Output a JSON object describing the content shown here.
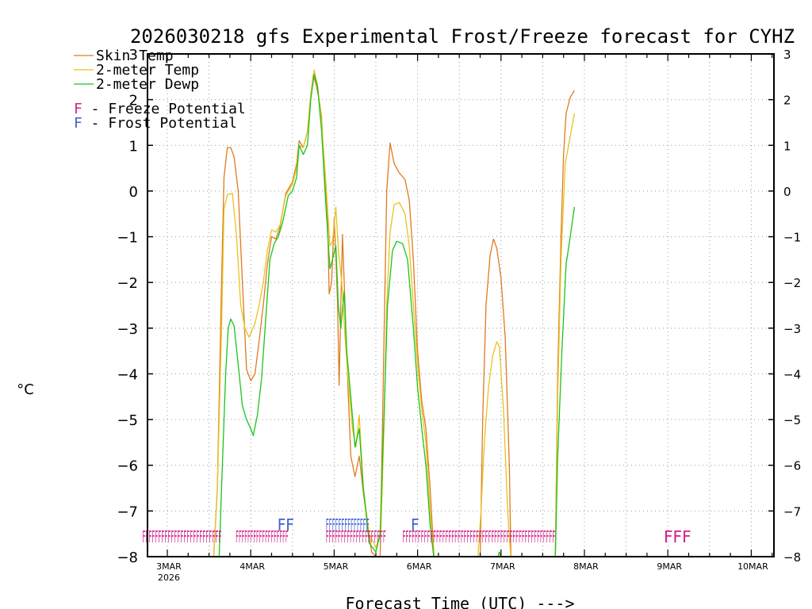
{
  "chart_data": {
    "type": "line",
    "title": "2026030218 gfs Experimental Frost/Freeze forecast for CYHZ",
    "ylabel": "°C",
    "xlabel": "Forecast Time (UTC) --->",
    "ylim": [
      -8,
      3
    ],
    "xlim": [
      -0.25,
      7.25
    ],
    "yticks": [
      -8,
      -7,
      -6,
      -5,
      -4,
      -3,
      -2,
      -1,
      0,
      1,
      2,
      3
    ],
    "ytick_labels": [
      "−8",
      "−7",
      "−6",
      "−5",
      "−4",
      "−3",
      "−2",
      "−1",
      "0",
      "1",
      "2",
      "3"
    ],
    "rtick_labels": [
      "−8",
      "−7",
      "−6",
      "−5",
      "−4",
      "−3",
      "−2",
      "−1",
      "0",
      "1",
      "2",
      "3"
    ],
    "xticks": [
      {
        "day": 0,
        "label": "3MAR",
        "sublabel": "2026"
      },
      {
        "day": 1,
        "label": "4MAR"
      },
      {
        "day": 2,
        "label": "5MAR"
      },
      {
        "day": 3,
        "label": "6MAR"
      },
      {
        "day": 4,
        "label": "7MAR"
      },
      {
        "day": 5,
        "label": "8MAR"
      },
      {
        "day": 6,
        "label": "9MAR"
      },
      {
        "day": 7,
        "label": "10MAR"
      }
    ],
    "x_units": "days since 3MAR 00UTC",
    "grid": true,
    "legend": [
      {
        "label": "Skin Temp",
        "color": "#e07a1f"
      },
      {
        "label": "2-meter Temp",
        "color": "#e8c21e"
      },
      {
        "label": "2-meter Dewp",
        "color": "#1bc41b"
      }
    ],
    "flag_legend": [
      {
        "letter": "F",
        "text": " - Freeze Potential",
        "color": "#d0208a"
      },
      {
        "letter": "F",
        "text": " - Frost Potential",
        "color": "#3f5fd0"
      }
    ],
    "series": [
      {
        "name": "Skin Temp",
        "color": "#e07a1f",
        "points": [
          [
            0.55,
            -8.2
          ],
          [
            0.6,
            -6.5
          ],
          [
            0.65,
            -2
          ],
          [
            0.68,
            0.3
          ],
          [
            0.72,
            0.95
          ],
          [
            0.76,
            0.95
          ],
          [
            0.8,
            0.75
          ],
          [
            0.85,
            0
          ],
          [
            0.9,
            -2
          ],
          [
            0.95,
            -3.9
          ],
          [
            1.0,
            -4.15
          ],
          [
            1.05,
            -4.0
          ],
          [
            1.1,
            -3.3
          ],
          [
            1.15,
            -2.5
          ],
          [
            1.2,
            -1.6
          ],
          [
            1.25,
            -1.0
          ],
          [
            1.3,
            -1.05
          ],
          [
            1.35,
            -0.8
          ],
          [
            1.42,
            -0.05
          ],
          [
            1.5,
            0.2
          ],
          [
            1.55,
            0.6
          ],
          [
            1.58,
            1.1
          ],
          [
            1.63,
            0.95
          ],
          [
            1.68,
            1.3
          ],
          [
            1.72,
            2.1
          ],
          [
            1.75,
            2.55
          ],
          [
            1.78,
            2.35
          ],
          [
            1.82,
            2.0
          ],
          [
            1.85,
            1.6
          ],
          [
            1.88,
            0.5
          ],
          [
            1.92,
            -0.5
          ],
          [
            1.94,
            -2.25
          ],
          [
            1.97,
            -2.0
          ],
          [
            2.0,
            -0.6
          ],
          [
            2.02,
            -1.4
          ],
          [
            2.04,
            -2.4
          ],
          [
            2.06,
            -4.25
          ],
          [
            2.08,
            -2.5
          ],
          [
            2.1,
            -0.95
          ],
          [
            2.13,
            -2.5
          ],
          [
            2.17,
            -4.5
          ],
          [
            2.2,
            -5.8
          ],
          [
            2.25,
            -6.25
          ],
          [
            2.3,
            -5.8
          ],
          [
            2.35,
            -6.6
          ],
          [
            2.45,
            -7.9
          ],
          [
            2.55,
            -8.1
          ],
          [
            2.6,
            -3
          ],
          [
            2.63,
            0
          ],
          [
            2.67,
            1.05
          ],
          [
            2.72,
            0.6
          ],
          [
            2.78,
            0.4
          ],
          [
            2.85,
            0.25
          ],
          [
            2.9,
            -0.2
          ],
          [
            2.95,
            -1.5
          ],
          [
            3.0,
            -3.5
          ],
          [
            3.05,
            -4.6
          ],
          [
            3.1,
            -5.2
          ],
          [
            3.15,
            -6.5
          ],
          [
            3.2,
            -8.1
          ],
          [
            3.75,
            -8.1
          ],
          [
            3.78,
            -5
          ],
          [
            3.82,
            -2.5
          ],
          [
            3.87,
            -1.4
          ],
          [
            3.91,
            -1.05
          ],
          [
            3.95,
            -1.25
          ],
          [
            4.0,
            -1.9
          ],
          [
            4.05,
            -3.2
          ],
          [
            4.1,
            -6
          ],
          [
            4.12,
            -8.1
          ],
          [
            4.65,
            -8.1
          ],
          [
            4.68,
            -4
          ],
          [
            4.72,
            -1
          ],
          [
            4.75,
            0.8
          ],
          [
            4.78,
            1.7
          ],
          [
            4.83,
            2.05
          ],
          [
            4.88,
            2.2
          ]
        ]
      },
      {
        "name": "2-meter Temp",
        "color": "#e8c21e",
        "points": [
          [
            0.55,
            -8.2
          ],
          [
            0.6,
            -6.5
          ],
          [
            0.65,
            -3
          ],
          [
            0.68,
            -0.4
          ],
          [
            0.72,
            -0.08
          ],
          [
            0.78,
            -0.05
          ],
          [
            0.83,
            -1
          ],
          [
            0.88,
            -2.5
          ],
          [
            0.93,
            -3.0
          ],
          [
            0.98,
            -3.2
          ],
          [
            1.05,
            -2.9
          ],
          [
            1.1,
            -2.5
          ],
          [
            1.15,
            -2.0
          ],
          [
            1.2,
            -1.3
          ],
          [
            1.25,
            -0.85
          ],
          [
            1.3,
            -0.9
          ],
          [
            1.35,
            -0.75
          ],
          [
            1.42,
            -0.1
          ],
          [
            1.5,
            0.15
          ],
          [
            1.55,
            0.5
          ],
          [
            1.58,
            1.0
          ],
          [
            1.63,
            0.95
          ],
          [
            1.68,
            1.3
          ],
          [
            1.72,
            2.1
          ],
          [
            1.76,
            2.65
          ],
          [
            1.8,
            2.3
          ],
          [
            1.85,
            1.5
          ],
          [
            1.9,
            0.2
          ],
          [
            1.95,
            -1.2
          ],
          [
            1.98,
            -1.1
          ],
          [
            2.02,
            -0.35
          ],
          [
            2.05,
            -1.3
          ],
          [
            2.08,
            -1.8
          ],
          [
            2.1,
            -2.2
          ],
          [
            2.13,
            -3.2
          ],
          [
            2.17,
            -4.2
          ],
          [
            2.22,
            -5.2
          ],
          [
            2.26,
            -5.6
          ],
          [
            2.3,
            -4.9
          ],
          [
            2.35,
            -6.5
          ],
          [
            2.42,
            -7.5
          ],
          [
            2.5,
            -7.8
          ],
          [
            2.56,
            -7.5
          ],
          [
            2.6,
            -5
          ],
          [
            2.63,
            -2.5
          ],
          [
            2.67,
            -0.9
          ],
          [
            2.72,
            -0.3
          ],
          [
            2.78,
            -0.25
          ],
          [
            2.85,
            -0.5
          ],
          [
            2.9,
            -1.2
          ],
          [
            2.95,
            -2.5
          ],
          [
            3.0,
            -3.8
          ],
          [
            3.05,
            -4.8
          ],
          [
            3.1,
            -5.5
          ],
          [
            3.15,
            -7
          ],
          [
            3.2,
            -8.1
          ],
          [
            3.72,
            -8.1
          ],
          [
            3.76,
            -7
          ],
          [
            3.8,
            -5.5
          ],
          [
            3.85,
            -4.3
          ],
          [
            3.9,
            -3.6
          ],
          [
            3.95,
            -3.3
          ],
          [
            3.98,
            -3.4
          ],
          [
            4.03,
            -4.8
          ],
          [
            4.08,
            -7
          ],
          [
            4.12,
            -8.1
          ],
          [
            4.65,
            -8.1
          ],
          [
            4.68,
            -4.5
          ],
          [
            4.72,
            -1.5
          ],
          [
            4.77,
            0.6
          ],
          [
            4.82,
            1.1
          ],
          [
            4.88,
            1.7
          ]
        ]
      },
      {
        "name": "2-meter Dewp",
        "color": "#1bc41b",
        "points": [
          [
            0.62,
            -8.1
          ],
          [
            0.65,
            -6.5
          ],
          [
            0.7,
            -4
          ],
          [
            0.73,
            -3.0
          ],
          [
            0.76,
            -2.8
          ],
          [
            0.8,
            -2.95
          ],
          [
            0.85,
            -3.8
          ],
          [
            0.9,
            -4.7
          ],
          [
            0.95,
            -5.0
          ],
          [
            1.0,
            -5.2
          ],
          [
            1.03,
            -5.35
          ],
          [
            1.08,
            -4.9
          ],
          [
            1.13,
            -4.1
          ],
          [
            1.18,
            -2.8
          ],
          [
            1.23,
            -1.5
          ],
          [
            1.28,
            -1.15
          ],
          [
            1.33,
            -1.0
          ],
          [
            1.38,
            -0.7
          ],
          [
            1.45,
            -0.1
          ],
          [
            1.5,
            0.0
          ],
          [
            1.55,
            0.3
          ],
          [
            1.58,
            1.0
          ],
          [
            1.63,
            0.8
          ],
          [
            1.68,
            1.0
          ],
          [
            1.72,
            2.0
          ],
          [
            1.76,
            2.55
          ],
          [
            1.8,
            2.3
          ],
          [
            1.85,
            1.3
          ],
          [
            1.9,
            -0.3
          ],
          [
            1.95,
            -1.7
          ],
          [
            1.98,
            -1.5
          ],
          [
            2.02,
            -1.2
          ],
          [
            2.05,
            -2.5
          ],
          [
            2.08,
            -3.0
          ],
          [
            2.12,
            -2.2
          ],
          [
            2.15,
            -3.5
          ],
          [
            2.2,
            -4.5
          ],
          [
            2.25,
            -5.6
          ],
          [
            2.3,
            -5.2
          ],
          [
            2.35,
            -6.5
          ],
          [
            2.42,
            -7.7
          ],
          [
            2.5,
            -7.9
          ],
          [
            2.55,
            -7.5
          ],
          [
            2.6,
            -4.8
          ],
          [
            2.64,
            -2.5
          ],
          [
            2.7,
            -1.3
          ],
          [
            2.75,
            -1.1
          ],
          [
            2.82,
            -1.15
          ],
          [
            2.88,
            -1.5
          ],
          [
            2.95,
            -3.0
          ],
          [
            3.0,
            -4.3
          ],
          [
            3.05,
            -5.2
          ],
          [
            3.1,
            -6.0
          ],
          [
            3.15,
            -7.3
          ],
          [
            3.2,
            -8.1
          ],
          [
            3.95,
            -8.1
          ],
          [
            3.98,
            -7.9
          ],
          [
            4.02,
            -8.1
          ],
          [
            4.65,
            -8.1
          ],
          [
            4.68,
            -5.8
          ],
          [
            4.73,
            -3.5
          ],
          [
            4.78,
            -1.6
          ],
          [
            4.83,
            -1.0
          ],
          [
            4.88,
            -0.35
          ]
        ]
      }
    ],
    "flags": [
      {
        "type": "freeze",
        "text": "FFFFFFFFFFFFFFFFFFFFFFFFF",
        "x_start": -0.3,
        "x_end": 0.65,
        "level": -7.5
      },
      {
        "type": "freeze",
        "text": "FFFFFFFFFFFFFFFFFF",
        "x_start": 0.82,
        "x_end": 1.45,
        "level": -7.5
      },
      {
        "type": "frost",
        "text": "FF",
        "x_start": 1.32,
        "x_end": 1.52,
        "level": -7.2
      },
      {
        "type": "frost",
        "text": "FFFFFFFFFFFFFF",
        "x_start": 1.9,
        "x_end": 2.42,
        "level": -7.2
      },
      {
        "type": "freeze",
        "text": "FFFFFFFFFFFFFFFFFFFF",
        "x_start": 1.9,
        "x_end": 2.62,
        "level": -7.5
      },
      {
        "type": "frost",
        "text": "F",
        "x_start": 2.92,
        "x_end": 3.02,
        "level": -7.2
      },
      {
        "type": "freeze",
        "text": "FFFFFFFFFFFFFFFFFFFFFFFFFFFFFFFFFFFFFFFFFFFFFFFFFF",
        "x_start": 2.82,
        "x_end": 4.65,
        "level": -7.5
      },
      {
        "type": "freeze",
        "text": "FFF",
        "x_start": 5.95,
        "x_end": 6.28,
        "level": -7.5
      }
    ]
  }
}
